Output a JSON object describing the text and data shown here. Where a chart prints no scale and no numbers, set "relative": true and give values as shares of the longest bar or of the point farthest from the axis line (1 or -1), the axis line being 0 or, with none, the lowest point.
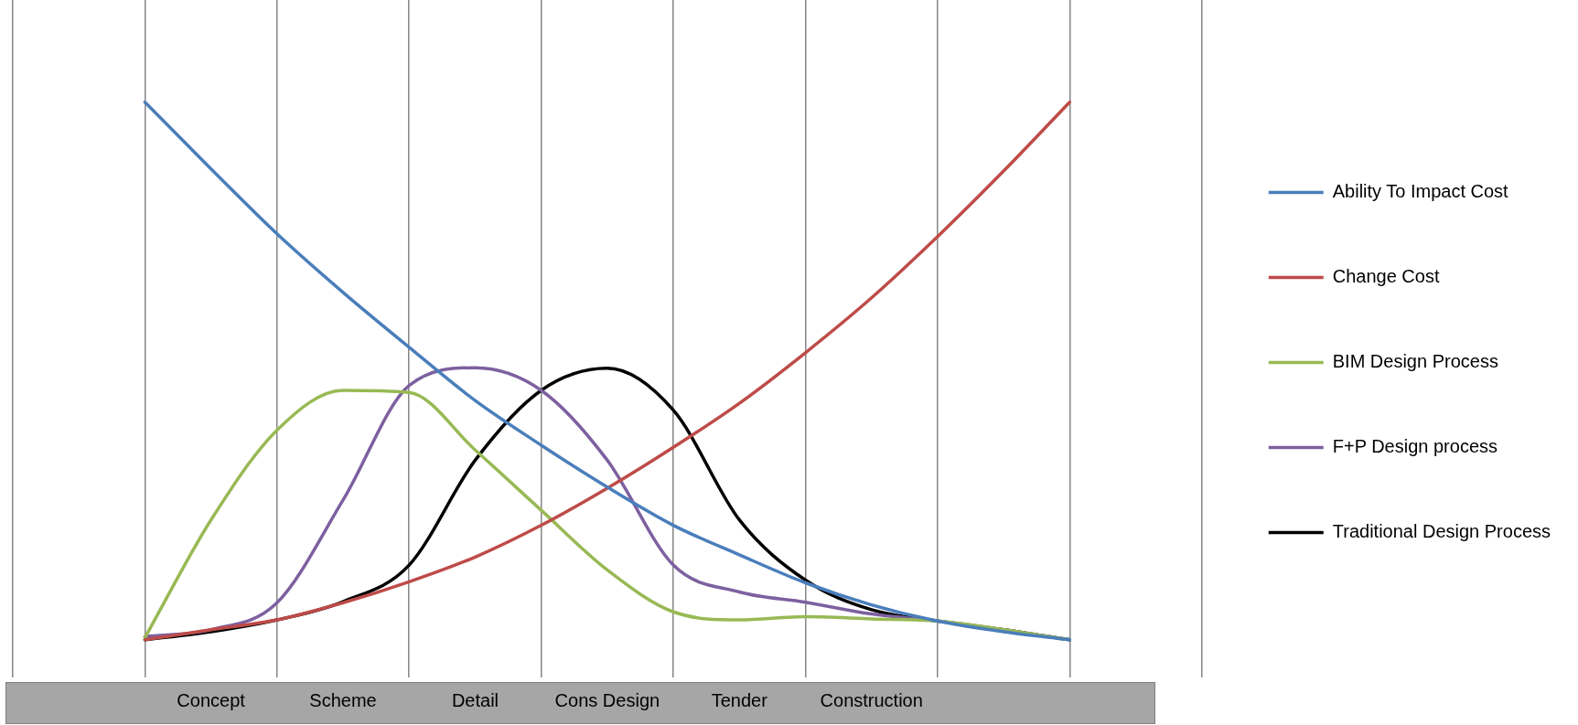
{
  "chart_data": {
    "type": "line",
    "relative": true,
    "categories": [
      null,
      null,
      null,
      "Concept",
      null,
      "Scheme",
      null,
      "Detail",
      null,
      "Cons Design",
      null,
      "Tender",
      null,
      "Construction",
      null,
      null,
      null,
      null,
      null
    ],
    "series": [
      {
        "name": "Ability To Impact Cost",
        "color": "#4a7ebb",
        "values": [
          null,
          null,
          1.0,
          0.876,
          0.755,
          0.646,
          0.544,
          0.445,
          0.362,
          0.284,
          0.213,
          0.158,
          0.106,
          0.065,
          0.035,
          0.015,
          0,
          null,
          null
        ]
      },
      {
        "name": "Change Cost",
        "color": "#be4b48",
        "values": [
          null,
          null,
          0,
          0.019,
          0.037,
          0.069,
          0.108,
          0.154,
          0.213,
          0.282,
          0.358,
          0.44,
          0.534,
          0.636,
          0.75,
          0.872,
          1.0,
          null,
          null
        ]
      },
      {
        "name": "BIM Design Process",
        "color": "#98b954",
        "values": [
          null,
          null,
          0.004,
          0.223,
          0.39,
          0.464,
          0.46,
          0.353,
          0.241,
          0.13,
          0.052,
          0.037,
          0.043,
          0.039,
          0.035,
          0.019,
          0,
          null,
          null
        ]
      },
      {
        "name": "F+P Design process",
        "color": "#7d60a0",
        "values": [
          null,
          null,
          0.006,
          0.019,
          0.069,
          0.26,
          0.473,
          0.506,
          0.464,
          0.334,
          0.139,
          0.089,
          0.07,
          0.048,
          0.035,
          0.019,
          0,
          null,
          null
        ]
      },
      {
        "name": "Traditional Design Process",
        "color": "#000000",
        "values": [
          null,
          null,
          0,
          0.015,
          0.037,
          0.071,
          0.139,
          0.334,
          0.464,
          0.505,
          0.427,
          0.223,
          0.111,
          0.056,
          0.035,
          0.019,
          0,
          null,
          null
        ]
      }
    ],
    "grid": "x",
    "legend": "right",
    "marker": "none",
    "line_style": "solid"
  }
}
